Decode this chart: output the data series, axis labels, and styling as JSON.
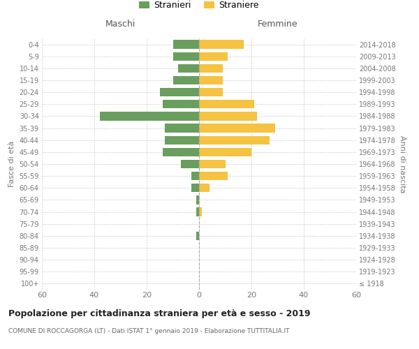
{
  "age_groups": [
    "100+",
    "95-99",
    "90-94",
    "85-89",
    "80-84",
    "75-79",
    "70-74",
    "65-69",
    "60-64",
    "55-59",
    "50-54",
    "45-49",
    "40-44",
    "35-39",
    "30-34",
    "25-29",
    "20-24",
    "15-19",
    "10-14",
    "5-9",
    "0-4"
  ],
  "birth_years": [
    "≤ 1918",
    "1919-1923",
    "1924-1928",
    "1929-1933",
    "1934-1938",
    "1939-1943",
    "1944-1948",
    "1949-1953",
    "1954-1958",
    "1959-1963",
    "1964-1968",
    "1969-1973",
    "1974-1978",
    "1979-1983",
    "1984-1988",
    "1989-1993",
    "1994-1998",
    "1999-2003",
    "2004-2008",
    "2009-2013",
    "2014-2018"
  ],
  "males": [
    0,
    0,
    0,
    0,
    1,
    0,
    1,
    1,
    3,
    3,
    7,
    14,
    13,
    13,
    38,
    14,
    15,
    10,
    8,
    10,
    10
  ],
  "females": [
    0,
    0,
    0,
    0,
    0,
    0,
    1,
    0,
    4,
    11,
    10,
    20,
    27,
    29,
    22,
    21,
    9,
    9,
    9,
    11,
    17
  ],
  "male_color": "#6a9e5f",
  "female_color": "#f5c242",
  "title": "Popolazione per cittadinanza straniera per età e sesso - 2019",
  "subtitle": "COMUNE DI ROCCAGORGA (LT) - Dati ISTAT 1° gennaio 2019 - Elaborazione TUTTITALIA.IT",
  "ylabel_left": "Fasce di età",
  "ylabel_right": "Anni di nascita",
  "xlabel_left": "Maschi",
  "xlabel_right": "Femmine",
  "legend_males": "Stranieri",
  "legend_females": "Straniere",
  "xlim": 60,
  "bg_color": "#ffffff",
  "grid_color": "#cccccc"
}
